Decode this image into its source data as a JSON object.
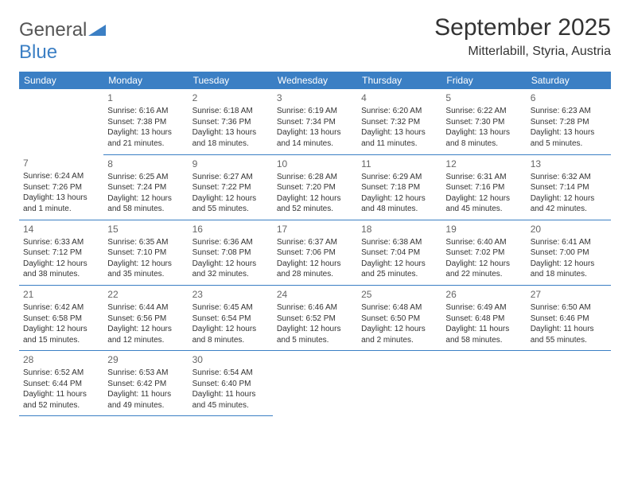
{
  "logo": {
    "word1": "General",
    "word2": "Blue"
  },
  "title": "September 2025",
  "location": "Mitterlabill, Styria, Austria",
  "colors": {
    "header_bg": "#3b7fc4",
    "header_fg": "#ffffff",
    "text": "#333333",
    "daynum": "#666666",
    "rule": "#3b7fc4",
    "background": "#ffffff"
  },
  "weekdays": [
    "Sunday",
    "Monday",
    "Tuesday",
    "Wednesday",
    "Thursday",
    "Friday",
    "Saturday"
  ],
  "layout": {
    "rows": 6,
    "cols": 7,
    "first_weekday_index": 1,
    "days_in_month": 30
  },
  "days": {
    "1": {
      "sunrise": "6:16 AM",
      "sunset": "7:38 PM",
      "daylight": "13 hours and 21 minutes."
    },
    "2": {
      "sunrise": "6:18 AM",
      "sunset": "7:36 PM",
      "daylight": "13 hours and 18 minutes."
    },
    "3": {
      "sunrise": "6:19 AM",
      "sunset": "7:34 PM",
      "daylight": "13 hours and 14 minutes."
    },
    "4": {
      "sunrise": "6:20 AM",
      "sunset": "7:32 PM",
      "daylight": "13 hours and 11 minutes."
    },
    "5": {
      "sunrise": "6:22 AM",
      "sunset": "7:30 PM",
      "daylight": "13 hours and 8 minutes."
    },
    "6": {
      "sunrise": "6:23 AM",
      "sunset": "7:28 PM",
      "daylight": "13 hours and 5 minutes."
    },
    "7": {
      "sunrise": "6:24 AM",
      "sunset": "7:26 PM",
      "daylight": "13 hours and 1 minute."
    },
    "8": {
      "sunrise": "6:25 AM",
      "sunset": "7:24 PM",
      "daylight": "12 hours and 58 minutes."
    },
    "9": {
      "sunrise": "6:27 AM",
      "sunset": "7:22 PM",
      "daylight": "12 hours and 55 minutes."
    },
    "10": {
      "sunrise": "6:28 AM",
      "sunset": "7:20 PM",
      "daylight": "12 hours and 52 minutes."
    },
    "11": {
      "sunrise": "6:29 AM",
      "sunset": "7:18 PM",
      "daylight": "12 hours and 48 minutes."
    },
    "12": {
      "sunrise": "6:31 AM",
      "sunset": "7:16 PM",
      "daylight": "12 hours and 45 minutes."
    },
    "13": {
      "sunrise": "6:32 AM",
      "sunset": "7:14 PM",
      "daylight": "12 hours and 42 minutes."
    },
    "14": {
      "sunrise": "6:33 AM",
      "sunset": "7:12 PM",
      "daylight": "12 hours and 38 minutes."
    },
    "15": {
      "sunrise": "6:35 AM",
      "sunset": "7:10 PM",
      "daylight": "12 hours and 35 minutes."
    },
    "16": {
      "sunrise": "6:36 AM",
      "sunset": "7:08 PM",
      "daylight": "12 hours and 32 minutes."
    },
    "17": {
      "sunrise": "6:37 AM",
      "sunset": "7:06 PM",
      "daylight": "12 hours and 28 minutes."
    },
    "18": {
      "sunrise": "6:38 AM",
      "sunset": "7:04 PM",
      "daylight": "12 hours and 25 minutes."
    },
    "19": {
      "sunrise": "6:40 AM",
      "sunset": "7:02 PM",
      "daylight": "12 hours and 22 minutes."
    },
    "20": {
      "sunrise": "6:41 AM",
      "sunset": "7:00 PM",
      "daylight": "12 hours and 18 minutes."
    },
    "21": {
      "sunrise": "6:42 AM",
      "sunset": "6:58 PM",
      "daylight": "12 hours and 15 minutes."
    },
    "22": {
      "sunrise": "6:44 AM",
      "sunset": "6:56 PM",
      "daylight": "12 hours and 12 minutes."
    },
    "23": {
      "sunrise": "6:45 AM",
      "sunset": "6:54 PM",
      "daylight": "12 hours and 8 minutes."
    },
    "24": {
      "sunrise": "6:46 AM",
      "sunset": "6:52 PM",
      "daylight": "12 hours and 5 minutes."
    },
    "25": {
      "sunrise": "6:48 AM",
      "sunset": "6:50 PM",
      "daylight": "12 hours and 2 minutes."
    },
    "26": {
      "sunrise": "6:49 AM",
      "sunset": "6:48 PM",
      "daylight": "11 hours and 58 minutes."
    },
    "27": {
      "sunrise": "6:50 AM",
      "sunset": "6:46 PM",
      "daylight": "11 hours and 55 minutes."
    },
    "28": {
      "sunrise": "6:52 AM",
      "sunset": "6:44 PM",
      "daylight": "11 hours and 52 minutes."
    },
    "29": {
      "sunrise": "6:53 AM",
      "sunset": "6:42 PM",
      "daylight": "11 hours and 49 minutes."
    },
    "30": {
      "sunrise": "6:54 AM",
      "sunset": "6:40 PM",
      "daylight": "11 hours and 45 minutes."
    }
  },
  "labels": {
    "sunrise": "Sunrise:",
    "sunset": "Sunset:",
    "daylight": "Daylight:"
  }
}
